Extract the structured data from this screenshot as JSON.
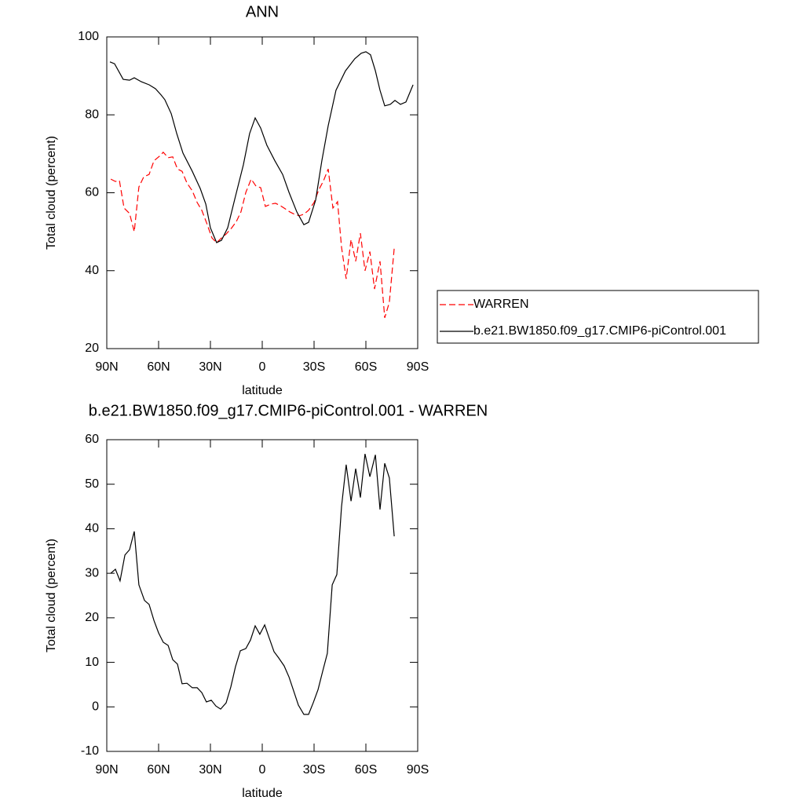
{
  "chart_data": [
    {
      "type": "line",
      "title": "ANN",
      "xlabel": "latitude",
      "ylabel": "Total cloud (percent)",
      "xlim": [
        90,
        -90
      ],
      "xticks": [
        {
          "value": 90,
          "label": "90N"
        },
        {
          "value": 60,
          "label": "60N"
        },
        {
          "value": 30,
          "label": "30N"
        },
        0,
        {
          "value": -30,
          "label": "30S"
        },
        {
          "value": -60,
          "label": "60S"
        },
        {
          "value": -90,
          "label": "90S"
        }
      ],
      "ylim": [
        20,
        100
      ],
      "yticks": [
        20,
        40,
        60,
        80,
        100
      ],
      "legend": "right",
      "series": [
        {
          "name": "WARREN",
          "color": "#ff0000",
          "dashed": true,
          "x": [
            87.7,
            85,
            82.7,
            80,
            76.8,
            74.1,
            71.4,
            68.6,
            65.5,
            62.7,
            59.5,
            57.3,
            54.5,
            51.8,
            49.1,
            46.4,
            43.6,
            40.5,
            37.7,
            35,
            32.3,
            29.1,
            26.4,
            23.6,
            20.9,
            17.7,
            15,
            12.3,
            9.5,
            6.4,
            3.6,
            0.9,
            -1.8,
            -5,
            -7.7,
            -10.5,
            -13.2,
            -15.9,
            -18.6,
            -21.4,
            -24.1,
            -26.8,
            -30,
            -32.7,
            -35.5,
            -38.2,
            -40.9,
            -43.6,
            -45.9,
            -48.6,
            -51.4,
            -54.1,
            -56.8,
            -59.5,
            -62.3,
            -65,
            -68.2,
            -70.9,
            -73.6,
            -76.4
          ],
          "values": [
            63.5,
            62.9,
            63.1,
            56.1,
            54.7,
            50,
            61.5,
            64.1,
            64.7,
            68.2,
            69.4,
            70.4,
            69,
            69.2,
            66.1,
            65.5,
            62.5,
            60.5,
            57.5,
            55.5,
            52.4,
            48.4,
            47.2,
            48.4,
            49.4,
            51,
            52.6,
            55.1,
            60.1,
            63.5,
            61.7,
            61.3,
            56.5,
            57.1,
            57.3,
            56.7,
            55.9,
            55.1,
            54.5,
            54.1,
            54.5,
            55.5,
            57.5,
            60.7,
            63.1,
            66.1,
            56.1,
            57.7,
            46,
            37.9,
            48,
            42.4,
            49.6,
            40,
            44.9,
            35.3,
            42.4,
            27.9,
            31.9,
            45.8
          ]
        },
        {
          "name": "b.e21.BW1850.f09_g17.CMIP6-piControl.001",
          "color": "#000000",
          "dashed": false,
          "x": [
            88.2,
            85.5,
            80.5,
            76.8,
            74.1,
            70,
            65.5,
            61.8,
            58.6,
            56.4,
            52.7,
            49.5,
            45.9,
            40.5,
            35.9,
            32.7,
            30,
            26.4,
            23.6,
            20,
            15.5,
            10.9,
            7.3,
            4.1,
            0.9,
            -2.7,
            -7.3,
            -11.8,
            -15.5,
            -20,
            -24.1,
            -26.8,
            -30.9,
            -34.5,
            -38.2,
            -42.7,
            -48.2,
            -53.6,
            -57.3,
            -60,
            -62.7,
            -65.5,
            -68.2,
            -70.9,
            -74.1,
            -76.8,
            -80,
            -83.2,
            -87.3
          ],
          "values": [
            93.6,
            93.1,
            89.1,
            88.9,
            89.5,
            88.5,
            87.7,
            86.7,
            85.1,
            83.9,
            80.3,
            75.2,
            70.2,
            65.5,
            61.1,
            57.1,
            51,
            47.2,
            47.8,
            51,
            59.1,
            67.2,
            75.2,
            79.2,
            76.6,
            72.2,
            68.2,
            64.7,
            60.1,
            55.1,
            51.8,
            52.4,
            58.1,
            68.2,
            77.2,
            86.3,
            91.3,
            94.4,
            95.8,
            96.2,
            95.4,
            91.3,
            86.3,
            82.3,
            82.7,
            83.7,
            82.7,
            83.3,
            87.7
          ]
        }
      ]
    },
    {
      "type": "line",
      "title": "b.e21.BW1850.f09_g17.CMIP6-piControl.001 - WARREN",
      "xlabel": "latitude",
      "ylabel": "Total cloud (percent)",
      "xlim": [
        90,
        -90
      ],
      "xticks": [
        {
          "value": 90,
          "label": "90N"
        },
        {
          "value": 60,
          "label": "60N"
        },
        {
          "value": 30,
          "label": "30N"
        },
        0,
        {
          "value": -30,
          "label": "30S"
        },
        {
          "value": -60,
          "label": "60S"
        },
        {
          "value": -90,
          "label": "90S"
        }
      ],
      "ylim": [
        -10,
        60
      ],
      "yticks": [
        -10,
        0,
        10,
        20,
        30,
        40,
        50,
        60
      ],
      "color": "#000000",
      "x": [
        87.7,
        85,
        82.3,
        79.5,
        76.8,
        74.1,
        71.4,
        68.2,
        65.5,
        62.7,
        60,
        57.3,
        54.5,
        51.8,
        49.1,
        46.4,
        43.6,
        40.5,
        37.7,
        35,
        32.3,
        29.5,
        26.8,
        24.1,
        20.9,
        18.2,
        15.5,
        12.7,
        9.5,
        6.8,
        4.1,
        1.4,
        -1.4,
        -4.1,
        -6.8,
        -9.5,
        -12.7,
        -15.5,
        -18.2,
        -20.9,
        -24.1,
        -26.8,
        -29.5,
        -32.3,
        -35,
        -37.7,
        -40.5,
        -43.2,
        -45.9,
        -48.6,
        -51.4,
        -54.1,
        -56.8,
        -59.5,
        -62.3,
        -65.5,
        -68.2,
        -70.9,
        -73.6,
        -76.4
      ],
      "values": [
        30,
        30.9,
        28.3,
        34.1,
        35.3,
        39.4,
        27.4,
        23.9,
        23,
        19.4,
        16.6,
        14.5,
        13.8,
        10.6,
        9.6,
        5.2,
        5.3,
        4.3,
        4.3,
        3.2,
        1.1,
        1.5,
        0.2,
        -0.5,
        0.9,
        4.5,
        9,
        12.6,
        13.1,
        15,
        18.2,
        16.3,
        18.4,
        15.4,
        12.4,
        11,
        9.2,
        6.7,
        3.6,
        0.4,
        -1.7,
        -1.7,
        0.9,
        3.9,
        8,
        12,
        27.4,
        29.7,
        45,
        54.4,
        46.2,
        53.5,
        47,
        56.8,
        51.7,
        56.6,
        44.3,
        54.7,
        51.4,
        38.3
      ]
    }
  ]
}
